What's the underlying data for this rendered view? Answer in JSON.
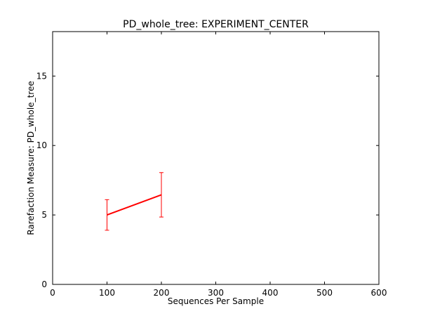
{
  "chart_data": {
    "type": "line",
    "title": "PD_whole_tree: EXPERIMENT_CENTER",
    "xlabel": "Sequences Per Sample",
    "ylabel": "Rarefaction Measure: PD_whole_tree",
    "xlim": [
      0,
      600
    ],
    "ylim": [
      0,
      18.2
    ],
    "xticks": [
      0,
      100,
      200,
      300,
      400,
      500,
      600
    ],
    "yticks": [
      0,
      5,
      10,
      15
    ],
    "grid": false,
    "series": [
      {
        "color": "#ff0000",
        "x": [
          100,
          200
        ],
        "y": [
          5.0,
          6.45
        ],
        "yerr": [
          1.1,
          1.6
        ]
      }
    ]
  }
}
